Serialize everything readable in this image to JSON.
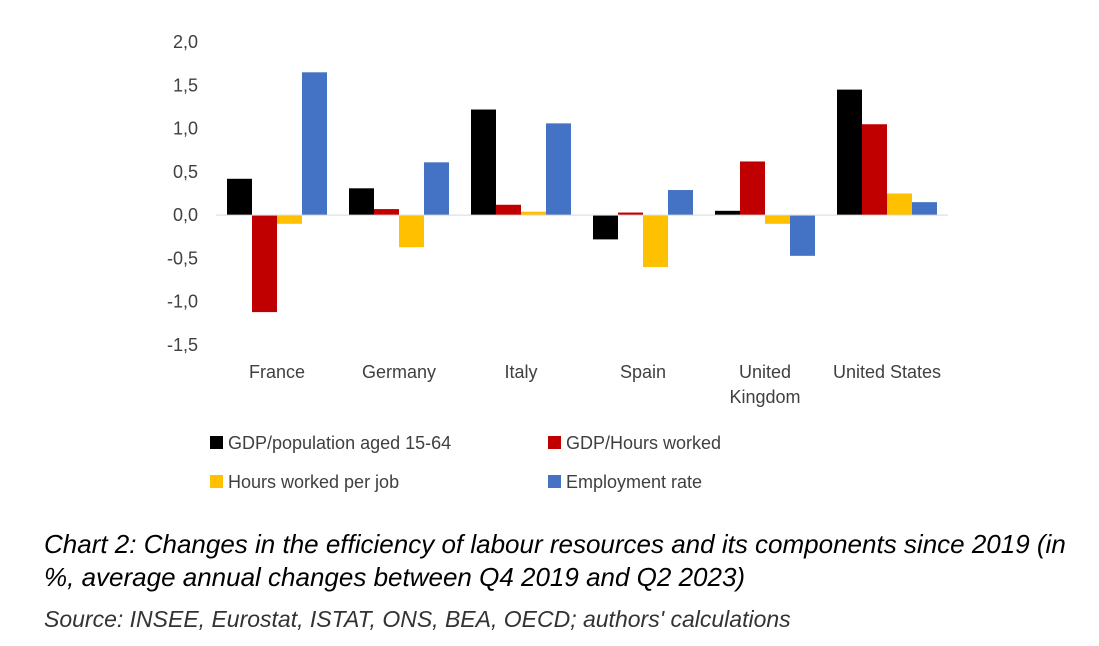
{
  "chart_data": {
    "type": "bar",
    "categories": [
      "France",
      "Germany",
      "Italy",
      "Spain",
      "United Kingdom",
      "United States"
    ],
    "category_lines": [
      [
        "France"
      ],
      [
        "Germany"
      ],
      [
        "Italy"
      ],
      [
        "Spain"
      ],
      [
        "United",
        "Kingdom"
      ],
      [
        "United States"
      ]
    ],
    "series": [
      {
        "name": "GDP/population aged 15-64",
        "color": "#000000",
        "values": [
          0.42,
          0.31,
          1.22,
          -0.28,
          0.05,
          1.45
        ]
      },
      {
        "name": "GDP/Hours worked",
        "color": "#C00000",
        "values": [
          -1.12,
          0.07,
          0.12,
          0.03,
          0.62,
          1.05
        ]
      },
      {
        "name": "Hours worked per job",
        "color": "#FFC000",
        "values": [
          -0.1,
          -0.37,
          0.04,
          -0.6,
          -0.1,
          0.25
        ]
      },
      {
        "name": "Employment rate",
        "color": "#4472C4",
        "values": [
          1.65,
          0.61,
          1.06,
          0.29,
          -0.47,
          0.15
        ]
      }
    ],
    "yticks": [
      "2,0",
      "1,5",
      "1,0",
      "0,5",
      "0,0",
      "-0,5",
      "-1,0",
      "-1,5"
    ],
    "ylim": [
      -1.5,
      2.0
    ],
    "grid": false,
    "legend_position": "bottom"
  },
  "caption": {
    "title": "Chart 2: Changes in the efficiency of labour resources and its components since 2019 (in %, average annual changes between Q4 2019 and Q2 2023)",
    "source": "Source: INSEE, Eurostat, ISTAT, ONS, BEA, OECD; authors' calculations"
  }
}
